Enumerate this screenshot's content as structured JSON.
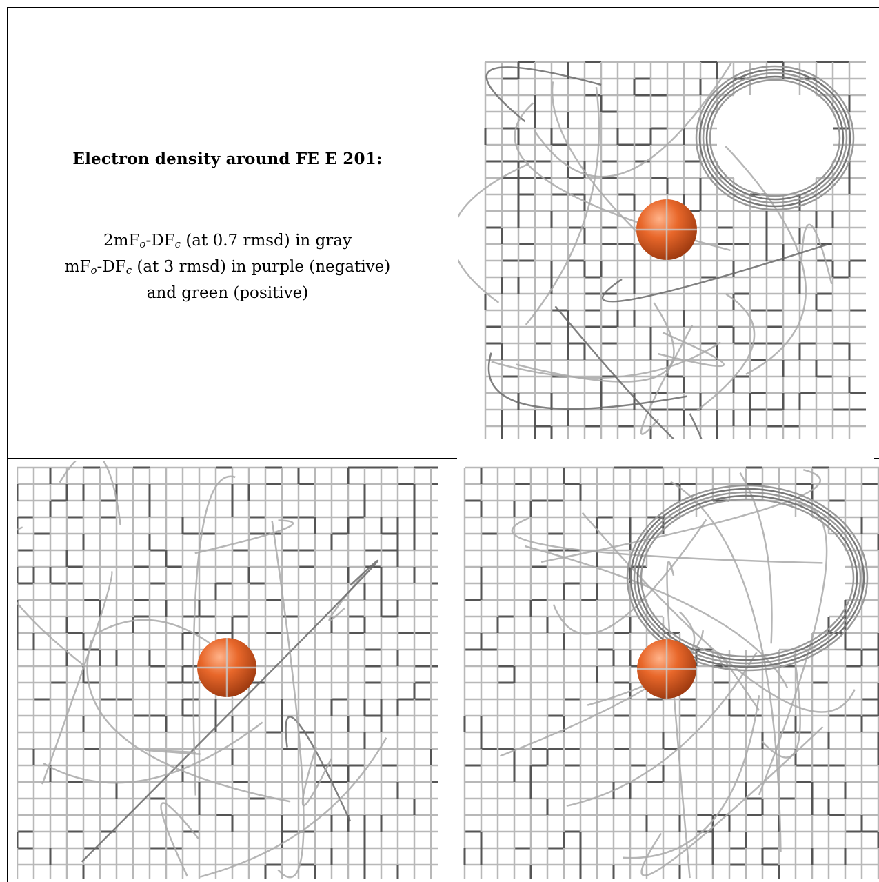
{
  "caption": {
    "title": "Electron density around FE E 201:",
    "lines": [
      {
        "pre": "2mF",
        "sub1": "o",
        "mid": "-DF",
        "sub2": "c",
        "post": " (at 0.7 rmsd) in gray"
      },
      {
        "pre": "mF",
        "sub1": "o",
        "mid": "-DF",
        "sub2": "c",
        "post": " (at 3 rmsd) in purple (negative)"
      },
      {
        "pre": "",
        "sub1": "",
        "mid": "",
        "sub2": "",
        "post": "and green (positive)"
      }
    ]
  },
  "panels": [
    {
      "id": "top-right",
      "atom": "FE",
      "atom_color": "#e8672a",
      "mesh_color": "#9a9a9a"
    },
    {
      "id": "bottom-left",
      "atom": "FE",
      "atom_color": "#e8672a",
      "mesh_color": "#9a9a9a"
    },
    {
      "id": "bottom-right",
      "atom": "FE",
      "atom_color": "#e8672a",
      "mesh_color": "#9a9a9a"
    }
  ]
}
